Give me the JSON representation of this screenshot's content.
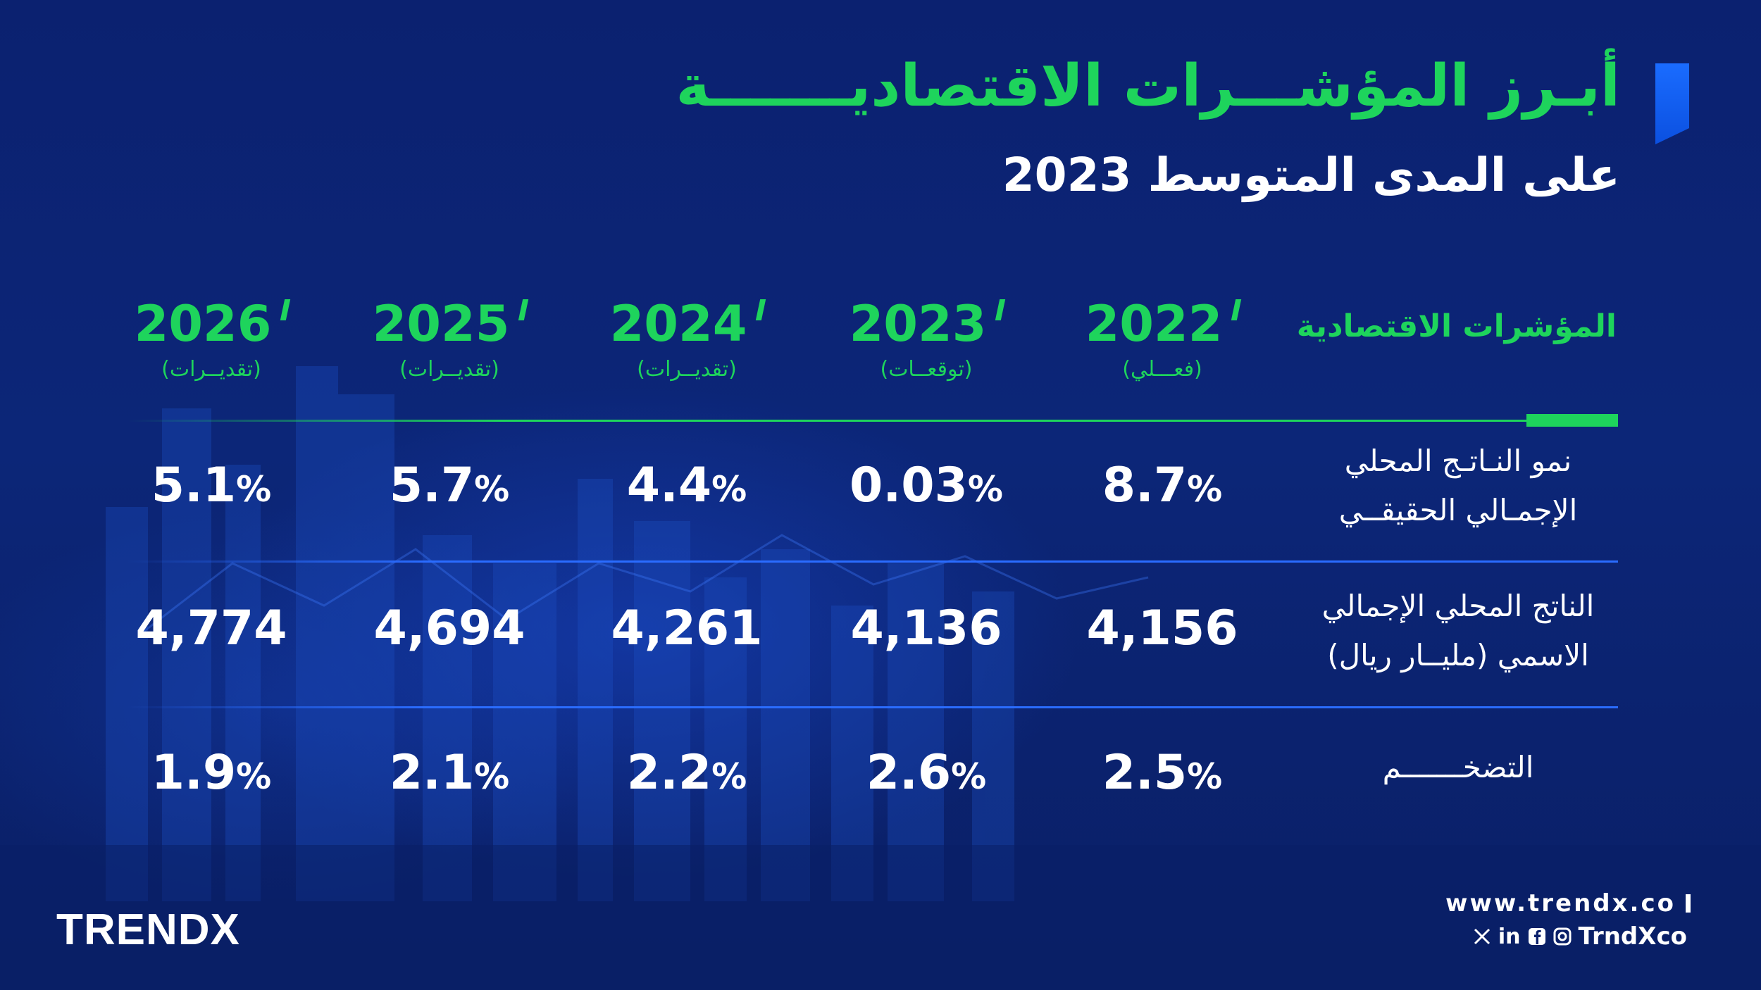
{
  "title": {
    "main": "أبـرز المؤشـــرات الاقتصاديـــــــة",
    "sub": "على المدى المتوسط 2023"
  },
  "table": {
    "indicators_header": "المؤشرات الاقتصادية",
    "columns": [
      {
        "year": "2026",
        "note": "(تقديــرات)"
      },
      {
        "year": "2025",
        "note": "(تقديــرات)"
      },
      {
        "year": "2024",
        "note": "(تقديــرات)"
      },
      {
        "year": "2023",
        "note": "(توقعــات)"
      },
      {
        "year": "2022",
        "note": "(فعـــلي)"
      }
    ],
    "rows": [
      {
        "label_line1": "نمو النـاتـج المحلي",
        "label_line2": "الإجمـالي الحقيقــي",
        "values": [
          {
            "num": "5.1",
            "unit": "%"
          },
          {
            "num": "5.7",
            "unit": "%"
          },
          {
            "num": "4.4",
            "unit": "%"
          },
          {
            "num": "0.03",
            "unit": "%"
          },
          {
            "num": "8.7",
            "unit": "%"
          }
        ]
      },
      {
        "label_line1": "الناتج المحلي الإجمالي",
        "label_line2": "الاسمي (مليــار ريال)",
        "values": [
          {
            "num": "4,774",
            "unit": ""
          },
          {
            "num": "4,694",
            "unit": ""
          },
          {
            "num": "4,261",
            "unit": ""
          },
          {
            "num": "4,136",
            "unit": ""
          },
          {
            "num": "4,156",
            "unit": ""
          }
        ]
      },
      {
        "label_line1": "التضخـــــــم",
        "label_line2": "",
        "values": [
          {
            "num": "1.9",
            "unit": "%"
          },
          {
            "num": "2.1",
            "unit": "%"
          },
          {
            "num": "2.2",
            "unit": "%"
          },
          {
            "num": "2.6",
            "unit": "%"
          },
          {
            "num": "2.5",
            "unit": "%"
          }
        ]
      }
    ]
  },
  "footer": {
    "logo": "TRENDX",
    "website": "www.trendx.co",
    "handle": "TrndXco",
    "social_icons": [
      "x-icon",
      "linkedin-icon",
      "facebook-icon",
      "instagram-icon"
    ]
  },
  "colors": {
    "background": "#0a1f6b",
    "accent_green": "#1ed45c",
    "accent_blue": "#1a6cff",
    "text": "#ffffff"
  }
}
